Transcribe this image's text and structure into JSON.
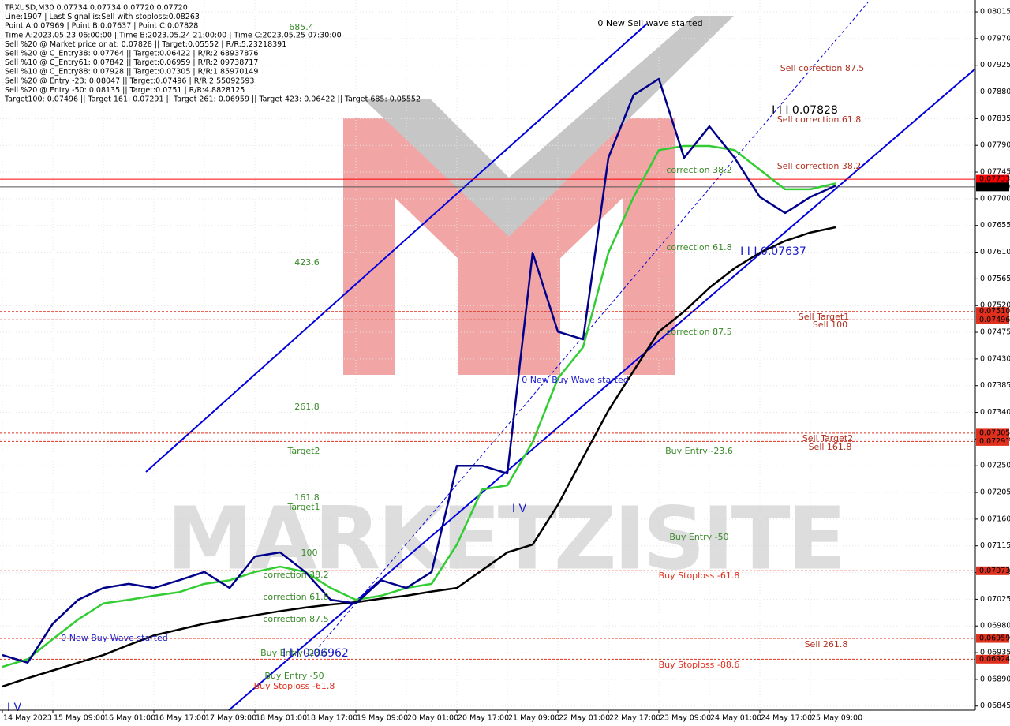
{
  "chart_data": {
    "type": "line",
    "header": [
      "TRXUSD,M30  0.07734 0.07734 0.07720 0.07720",
      "Line:1907 | Last Signal is:Sell with stoploss:0.08263",
      "Point A:0.07969 | Point B:0.07637 | Point C:0.07828",
      "Time A:2023.05.23 06:00:00 | Time B:2023.05.24 21:00:00 | Time C:2023.05.25 07:30:00",
      "Sell %20 @ Market price or at: 0.07828 || Target:0.05552 | R/R:5.23218391",
      "Sell %20 @ C_Entry38: 0.07764 || Target:0.06422 | R/R:2.68937876",
      "Sell %10 @ C_Entry61: 0.07842 || Target:0.06959 | R/R:2.09738717",
      "Sell %10 @ C_Entry88: 0.07928 || Target:0.07305 | R/R:1.85970149",
      "Sell %20 @ Entry -23: 0.08047 || Target:0.07496 | R/R:2.55092593",
      "Sell %20 @ Entry -50: 0.08135 || Target:0.0751 | R/R:4.8828125",
      "Target100: 0.07496 || Target 161: 0.07291 || Target 261: 0.06959 || Target 423: 0.06422 || Target 685: 0.05552"
    ],
    "watermark": "MARKETZISITE",
    "categories": [
      "14 May 2023",
      null,
      "15 May 09:00",
      null,
      "16 May 01:00",
      null,
      "16 May 17:00",
      null,
      "17 May 09:00",
      null,
      "18 May 01:00",
      null,
      "18 May 17:00",
      null,
      "19 May 09:00",
      null,
      "20 May 01:00",
      null,
      "20 May 17:00",
      null,
      "21 May 09:00",
      null,
      "22 May 01:00",
      null,
      "22 May 17:00",
      null,
      "23 May 09:00",
      null,
      "24 May 01:00",
      null,
      "24 May 17:00",
      null,
      "25 May 09:00",
      null
    ],
    "series": [
      {
        "color": "#000000",
        "values": [
          0.06878,
          0.06892,
          0.06905,
          0.06918,
          0.06931,
          0.06948,
          0.06964,
          0.06974,
          0.06984,
          0.06991,
          0.06998,
          0.07005,
          0.07011,
          0.07016,
          0.0702,
          0.07026,
          0.07031,
          0.07038,
          0.07044,
          0.07074,
          0.07104,
          0.07117,
          0.07184,
          0.07264,
          0.07343,
          0.0741,
          0.07476,
          0.0751,
          0.0755,
          0.07583,
          0.07609,
          0.07629,
          0.07643,
          0.07652
        ]
      },
      {
        "color": "#32cd32",
        "values": [
          0.06911,
          0.06924,
          0.06958,
          0.06991,
          0.07018,
          0.07024,
          0.07031,
          0.07037,
          0.07051,
          0.07057,
          0.07071,
          0.0708,
          0.07071,
          0.07044,
          0.07024,
          0.07031,
          0.07044,
          0.07051,
          0.07117,
          0.0721,
          0.07217,
          0.0729,
          0.07397,
          0.0745,
          0.07609,
          0.07703,
          0.07782,
          0.07789,
          0.07789,
          0.07782,
          0.07749,
          0.07716,
          0.07716,
          0.07726
        ]
      },
      {
        "color": "#00008b",
        "values": [
          0.06931,
          0.06918,
          0.06984,
          0.07024,
          0.07044,
          0.07051,
          0.07044,
          0.07057,
          0.07071,
          0.07044,
          0.07097,
          0.07104,
          0.07071,
          0.07024,
          0.07018,
          0.07057,
          0.07044,
          0.07071,
          0.0725,
          0.0725,
          0.07237,
          0.07609,
          0.07476,
          0.07463,
          0.07769,
          0.07875,
          0.07902,
          0.07769,
          0.07822,
          0.07769,
          0.07703,
          0.07676,
          0.07703,
          0.07722
        ]
      }
    ],
    "ylim": [
      0.06838,
      0.08035
    ],
    "yticks": [
      0.08015,
      {
        "value": 0.0797,
        "label": "0.07970"
      },
      0.07925,
      {
        "value": 0.0788,
        "label": "0.07880"
      },
      0.07835,
      {
        "value": 0.0779,
        "label": "0.07790"
      },
      0.07745,
      {
        "value": 0.077,
        "label": "0.07700"
      },
      0.07655,
      {
        "value": 0.0761,
        "label": "0.07610"
      },
      0.07565,
      {
        "value": 0.0752,
        "label": "0.07520"
      },
      0.07475,
      {
        "value": 0.0743,
        "label": "0.07430"
      },
      0.07385,
      {
        "value": 0.0734,
        "label": "0.07340"
      },
      0.07295,
      {
        "value": 0.0725,
        "label": "0.07250"
      },
      0.07205,
      {
        "value": 0.0716,
        "label": "0.07160"
      },
      0.07115,
      {
        "value": 0.0707,
        "label": "0.07070"
      },
      0.07025,
      {
        "value": 0.0698,
        "label": "0.06980"
      },
      0.06935,
      {
        "value": 0.0689,
        "label": "0.06890"
      },
      0.06845
    ],
    "grid": true,
    "levels": [
      {
        "value": 0.07733,
        "label": "0.07733",
        "color": "#ff0000",
        "style": "solid"
      },
      {
        "value": 0.0772,
        "label": "0.07720",
        "color": "#000000",
        "style": "solid"
      },
      {
        "value": 0.0751,
        "label": "0.07510",
        "color": "#e0301e",
        "style": "dashed"
      },
      {
        "value": 0.07496,
        "label": "0.07496",
        "color": "#e0301e",
        "style": "dashed"
      },
      {
        "value": 0.07305,
        "label": "0.07305",
        "color": "#e0301e",
        "style": "dashed"
      },
      {
        "value": 0.07291,
        "label": "0.07291",
        "color": "#e0301e",
        "style": "dashed"
      },
      {
        "value": 0.07073,
        "label": "0.07073",
        "color": "#e0301e",
        "style": "dashed"
      },
      {
        "value": 0.06959,
        "label": "0.06959",
        "color": "#e0301e",
        "style": "dashed"
      },
      {
        "value": 0.06924,
        "label": "0.06924",
        "color": "#e0301e",
        "style": "dashed"
      }
    ],
    "annotations": [
      {
        "text": "685.4",
        "color": "#3a8a2a"
      },
      {
        "text": "0 New Sell wave started",
        "color": "#000000"
      },
      {
        "text": "Sell correction 87.5",
        "color": "#b03020"
      },
      {
        "text": "I I I  0.07828",
        "color": "#000000"
      },
      {
        "text": "Sell correction 61.8",
        "color": "#b03020"
      },
      {
        "text": "Sell correction 38.2",
        "color": "#b03020"
      },
      {
        "text": "correction 38.2",
        "color": "#3a8a2a"
      },
      {
        "text": "correction 61.8",
        "color": "#3a8a2a"
      },
      {
        "text": "I I I  0.07637",
        "color": "#1a1acc"
      },
      {
        "text": "423.6",
        "color": "#3a8a2a"
      },
      {
        "text": "Sell Target1",
        "color": "#b03020"
      },
      {
        "text": "Sell 100",
        "color": "#b03020"
      },
      {
        "text": "correction 87.5",
        "color": "#3a8a2a"
      },
      {
        "text": "0 New Buy Wave started",
        "color": "#1a1acc"
      },
      {
        "text": "261.8",
        "color": "#3a8a2a"
      },
      {
        "text": "Sell Target2",
        "color": "#b03020"
      },
      {
        "text": "Sell 161.8",
        "color": "#b03020"
      },
      {
        "text": "Target2",
        "color": "#3a8a2a"
      },
      {
        "text": "Buy Entry -23.6",
        "color": "#3a8a2a"
      },
      {
        "text": "161.8",
        "color": "#3a8a2a"
      },
      {
        "text": "Target1",
        "color": "#3a8a2a"
      },
      {
        "text": "I V",
        "color": "#1a1acc"
      },
      {
        "text": "Buy Entry -50",
        "color": "#3a8a2a"
      },
      {
        "text": "100",
        "color": "#3a8a2a"
      },
      {
        "text": "Buy Stoploss -61.8",
        "color": "#e0301e"
      },
      {
        "text": "correction 38.2",
        "color": "#3a8a2a"
      },
      {
        "text": "correction 61.8",
        "color": "#3a8a2a"
      },
      {
        "text": "correction 87.5",
        "color": "#3a8a2a"
      },
      {
        "text": "0 New Buy Wave started",
        "color": "#1a1acc"
      },
      {
        "text": "Sell  261.8",
        "color": "#b03020"
      },
      {
        "text": "Buy Entry -23.6",
        "color": "#3a8a2a"
      },
      {
        "text": "I I I  0.06962",
        "color": "#1a1acc"
      },
      {
        "text": "Buy Entry -50",
        "color": "#3a8a2a"
      },
      {
        "text": "Buy Stoploss -88.6",
        "color": "#e0301e"
      },
      {
        "text": "Buy Stoploss -61.8",
        "color": "#e0301e"
      },
      {
        "text": "I V",
        "color": "#1a1acc"
      }
    ]
  }
}
